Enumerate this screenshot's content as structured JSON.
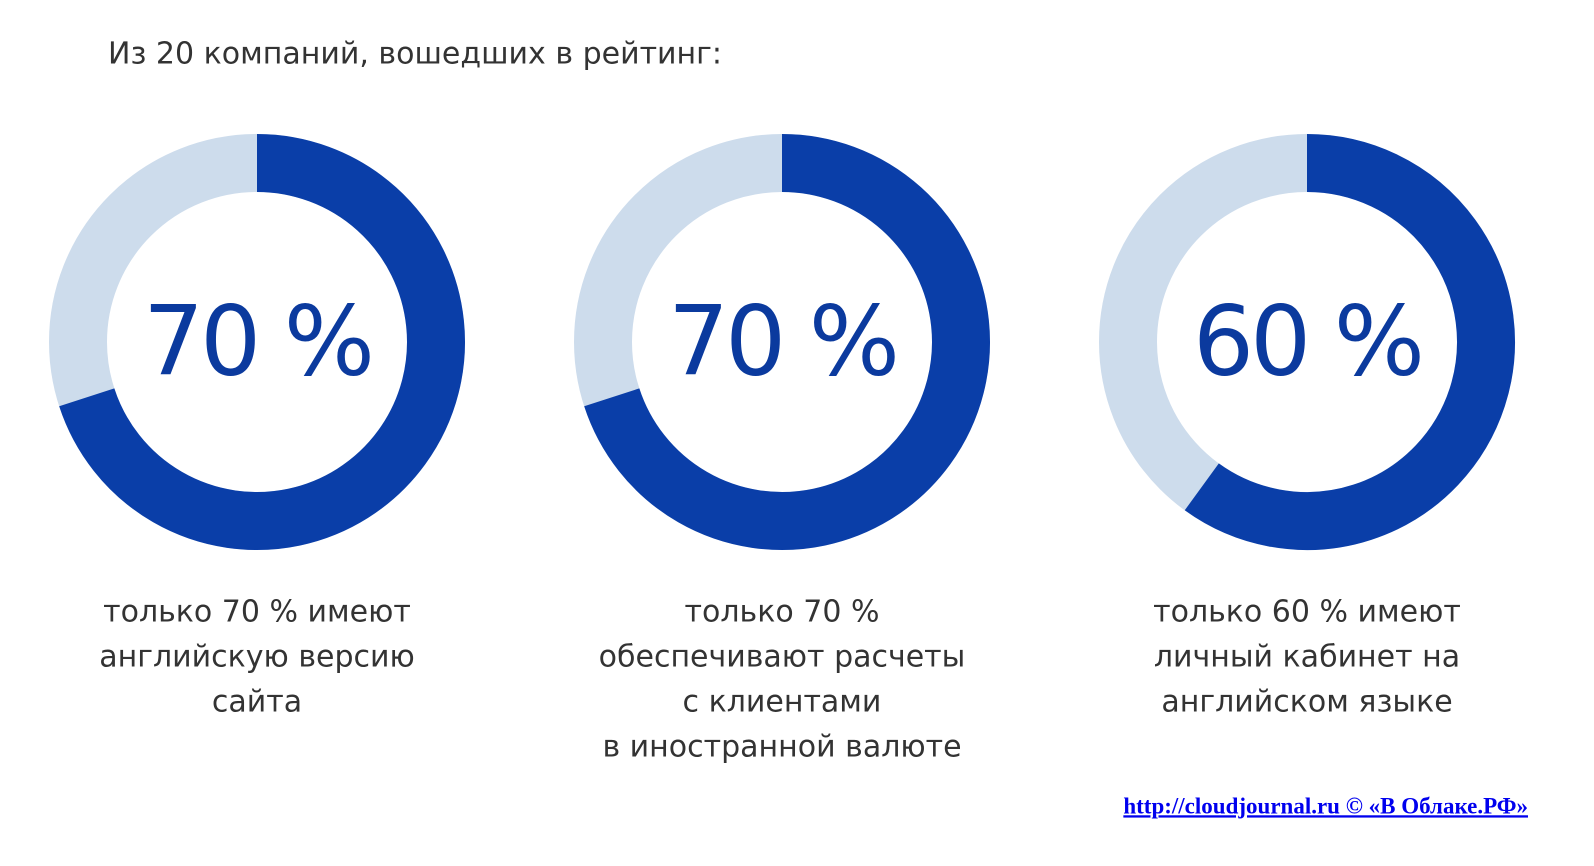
{
  "title": "Из 20 компаний, вошедших в рейтинг:",
  "chart_data": [
    {
      "type": "donut",
      "values": [
        70
      ],
      "value_labels": [
        "70 %"
      ],
      "color": "#0a3ea8",
      "track_color": "#cddcec",
      "caption": [
        "только 70 % имеют",
        "английскую версию",
        "сайта"
      ]
    },
    {
      "type": "donut",
      "values": [
        70
      ],
      "value_labels": [
        "70 %"
      ],
      "color": "#0a3ea8",
      "track_color": "#cddcec",
      "caption": [
        "только 70 %",
        "обеспечивают расчеты",
        "с клиентами",
        "в иностранной валюте"
      ]
    },
    {
      "type": "donut",
      "values": [
        60
      ],
      "value_labels": [
        "60 %"
      ],
      "color": "#0a3ea8",
      "track_color": "#cddcec",
      "caption": [
        "только 60 % имеют",
        "личный кабинет на",
        "английском языке"
      ]
    }
  ],
  "footer": "http://cloudjournal.ru  ©  «В Облаке.РФ»"
}
